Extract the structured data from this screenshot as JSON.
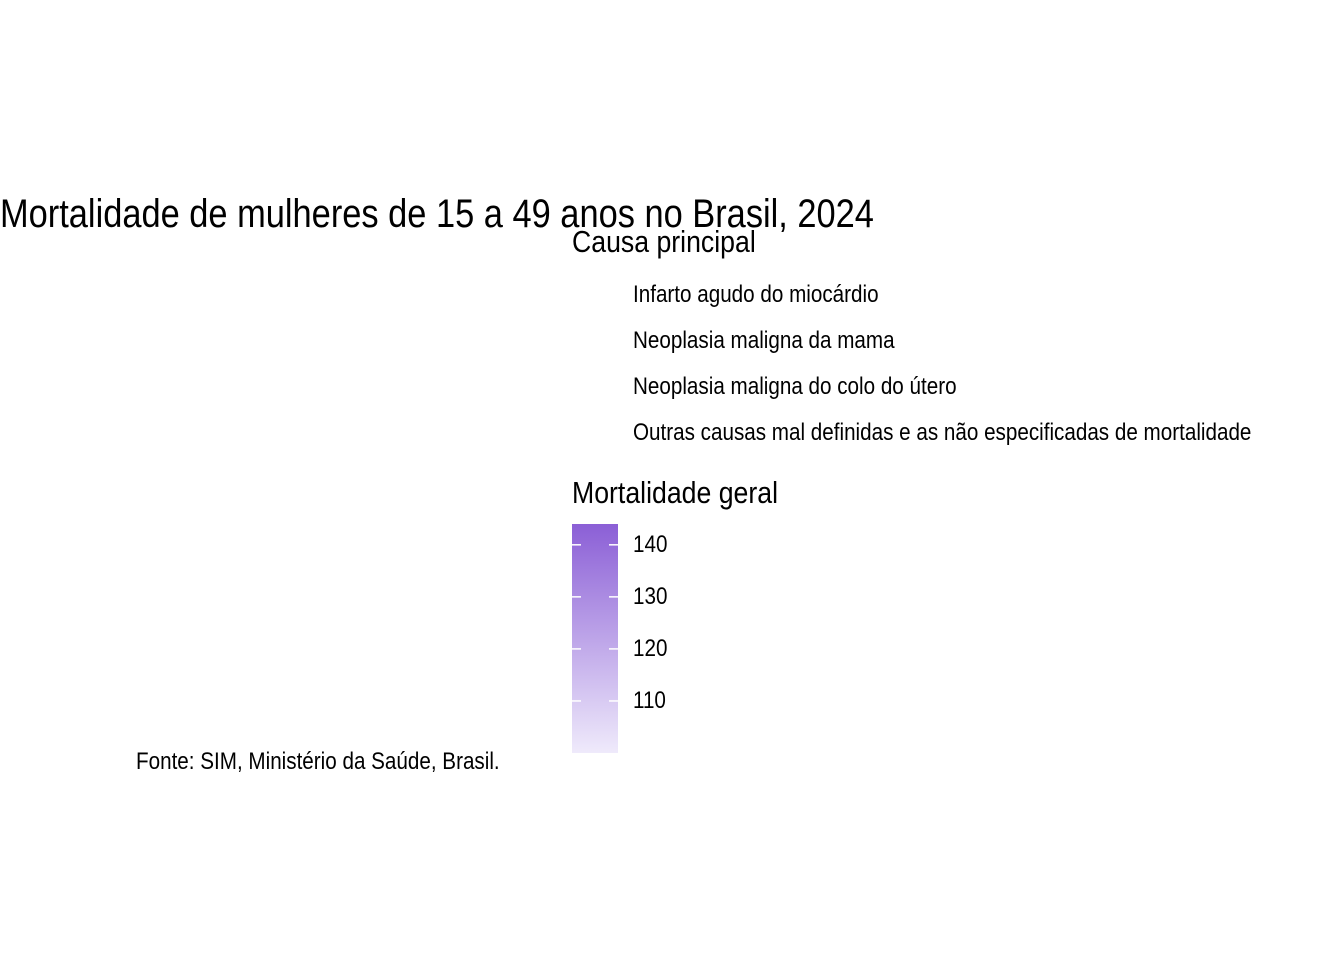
{
  "chart_data": {
    "type": "map",
    "title": "Mortalidade de mulheres de 15 a 49 anos no Brasil, 2024",
    "caption": "Fonte: SIM, Ministério da Saúde, Brasil.",
    "legend_cause": {
      "title": "Causa principal",
      "items": [
        "Infarto agudo do miocárdio",
        "Neoplasia maligna da mama",
        "Neoplasia maligna do colo do útero",
        "Outras causas mal definidas e as não especificadas de mortalidade"
      ]
    },
    "legend_scale": {
      "title": "Mortalidade geral",
      "ticks": [
        140,
        130,
        120,
        110
      ],
      "range": [
        100,
        144
      ],
      "color_low": "#efeafb",
      "color_high": "#8b5fd6"
    }
  }
}
